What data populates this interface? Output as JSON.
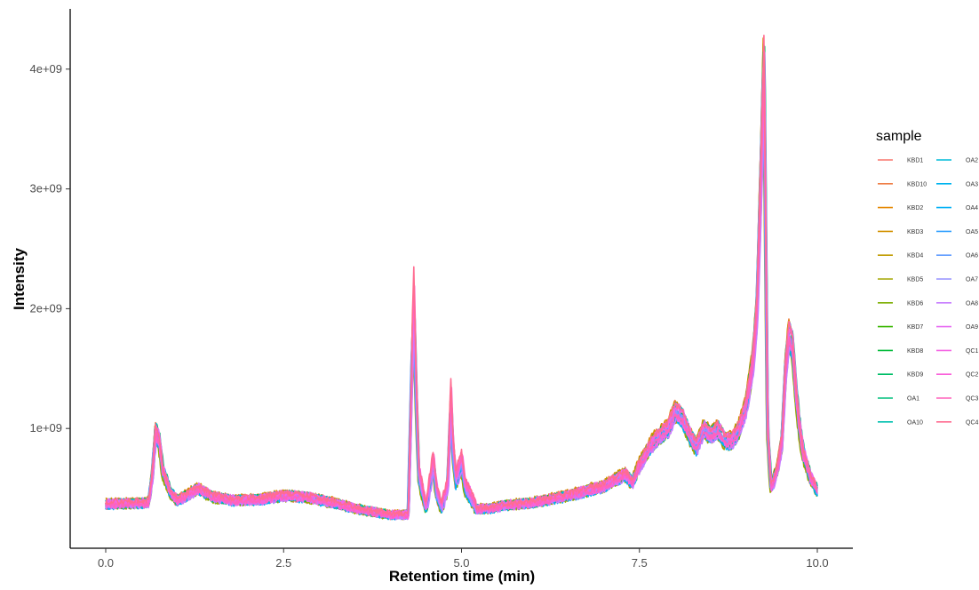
{
  "chart_data": {
    "type": "line",
    "xlabel": "Retention time (min)",
    "ylabel": "Intensity",
    "xlim": [
      -0.5,
      10.5
    ],
    "ylim": [
      0,
      4500000000.0
    ],
    "x_ticks": [
      0,
      2.5,
      5,
      7.5,
      10
    ],
    "x_tick_labels": [
      "0.0",
      "2.5",
      "5.0",
      "7.5",
      "10.0"
    ],
    "y_ticks": [
      1000000000.0,
      2000000000.0,
      3000000000.0,
      4000000000.0
    ],
    "y_tick_labels": [
      "1e+09",
      "2e+09",
      "3e+09",
      "4e+09"
    ],
    "grid": false,
    "legend": {
      "title": "sample",
      "position": "right",
      "columns": 2
    },
    "profile": {
      "x": [
        0,
        0.6,
        0.65,
        0.7,
        0.75,
        0.8,
        0.9,
        1.0,
        1.1,
        1.3,
        1.5,
        1.8,
        2.2,
        2.5,
        2.8,
        3.2,
        3.6,
        4.0,
        4.25,
        4.3,
        4.33,
        4.36,
        4.4,
        4.5,
        4.6,
        4.65,
        4.72,
        4.8,
        4.85,
        4.88,
        4.92,
        5.0,
        5.05,
        5.2,
        5.4,
        5.6,
        6.0,
        6.5,
        7.0,
        7.3,
        7.4,
        7.5,
        7.7,
        7.9,
        8.0,
        8.1,
        8.2,
        8.3,
        8.4,
        8.5,
        8.6,
        8.7,
        8.8,
        8.9,
        9.0,
        9.1,
        9.15,
        9.2,
        9.25,
        9.3,
        9.35,
        9.4,
        9.45,
        9.5,
        9.55,
        9.6,
        9.65,
        9.7,
        9.75,
        9.8,
        9.9,
        10.0
      ],
      "y": [
        370000000.0,
        380000000.0,
        600000000.0,
        980000000.0,
        900000000.0,
        650000000.0,
        480000000.0,
        400000000.0,
        430000000.0,
        500000000.0,
        430000000.0,
        400000000.0,
        410000000.0,
        440000000.0,
        430000000.0,
        380000000.0,
        320000000.0,
        280000000.0,
        280000000.0,
        1500000000.0,
        2000000000.0,
        1300000000.0,
        600000000.0,
        320000000.0,
        700000000.0,
        450000000.0,
        330000000.0,
        500000000.0,
        1200000000.0,
        800000000.0,
        550000000.0,
        700000000.0,
        500000000.0,
        330000000.0,
        330000000.0,
        360000000.0,
        380000000.0,
        440000000.0,
        520000000.0,
        620000000.0,
        550000000.0,
        700000000.0,
        900000000.0,
        1000000000.0,
        1150000000.0,
        1100000000.0,
        950000000.0,
        850000000.0,
        1000000000.0,
        950000000.0,
        1000000000.0,
        900000000.0,
        900000000.0,
        1000000000.0,
        1200000000.0,
        1600000000.0,
        2000000000.0,
        3000000000.0,
        4100000000.0,
        1000000000.0,
        500000000.0,
        600000000.0,
        700000000.0,
        900000000.0,
        1500000000.0,
        1800000000.0,
        1700000000.0,
        1300000000.0,
        1000000000.0,
        800000000.0,
        600000000.0,
        480000000.0
      ]
    },
    "series": [
      {
        "name": "KBD1",
        "color": "#F8766D"
      },
      {
        "name": "KBD10",
        "color": "#EF7F48"
      },
      {
        "name": "KBD2",
        "color": "#E58700"
      },
      {
        "name": "KBD3",
        "color": "#D39200"
      },
      {
        "name": "KBD4",
        "color": "#C09B00"
      },
      {
        "name": "KBD5",
        "color": "#A3A500"
      },
      {
        "name": "KBD6",
        "color": "#7CAE00"
      },
      {
        "name": "KBD7",
        "color": "#39B600"
      },
      {
        "name": "KBD8",
        "color": "#00BA38"
      },
      {
        "name": "KBD9",
        "color": "#00BE67"
      },
      {
        "name": "OA1",
        "color": "#00BF7D"
      },
      {
        "name": "OA10",
        "color": "#00C0AF"
      },
      {
        "name": "OA2",
        "color": "#00BCD8"
      },
      {
        "name": "OA3",
        "color": "#00B4EF"
      },
      {
        "name": "OA4",
        "color": "#00B0F6"
      },
      {
        "name": "OA5",
        "color": "#35A2FF"
      },
      {
        "name": "OA6",
        "color": "#619CFF"
      },
      {
        "name": "OA7",
        "color": "#9590FF"
      },
      {
        "name": "OA8",
        "color": "#C77CFF"
      },
      {
        "name": "OA9",
        "color": "#E76BF3"
      },
      {
        "name": "QC1",
        "color": "#F564E3"
      },
      {
        "name": "QC2",
        "color": "#FA62DB"
      },
      {
        "name": "QC3",
        "color": "#FF62BC"
      },
      {
        "name": "QC4",
        "color": "#FF6C91"
      }
    ]
  }
}
